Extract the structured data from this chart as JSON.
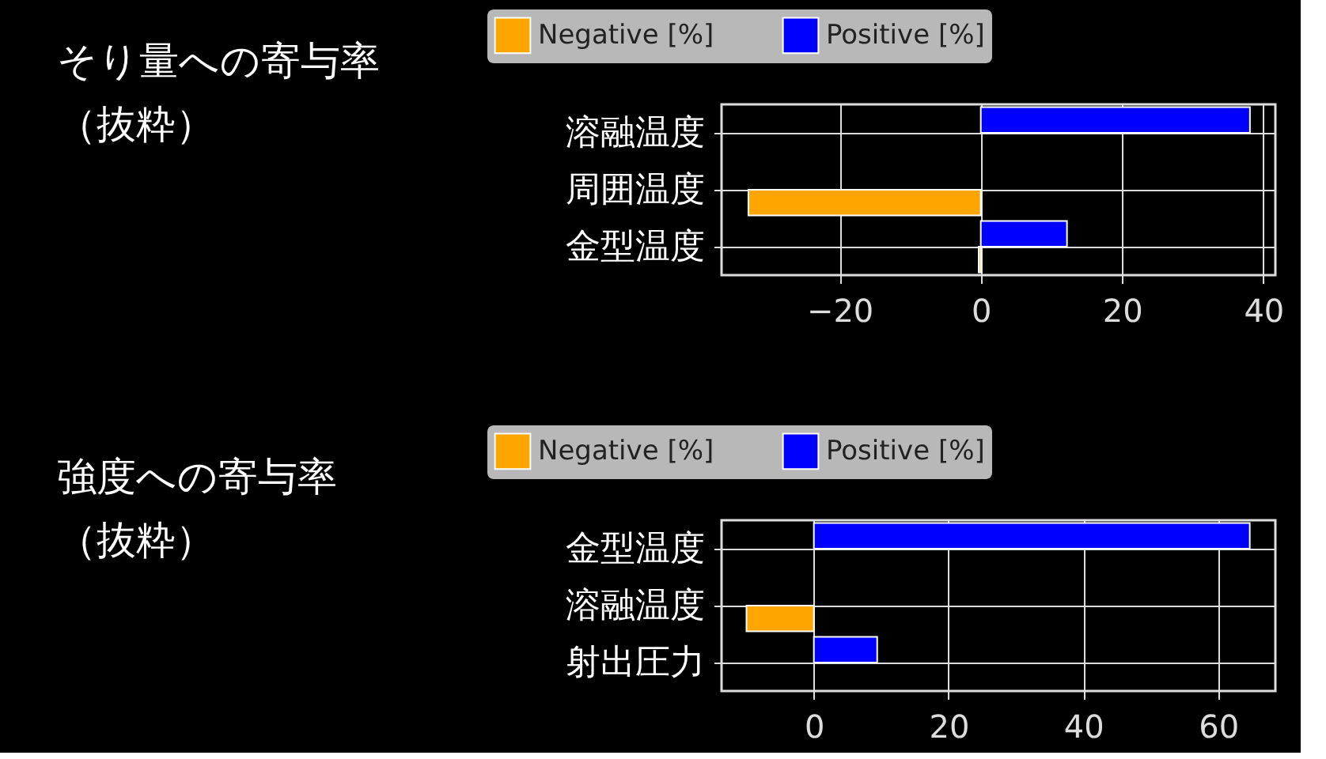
{
  "chart_data": [
    {
      "type": "bar",
      "orientation": "horizontal",
      "title": "そり量への寄与率（抜粋）",
      "categories": [
        "溶融温度",
        "周囲温度",
        "金型温度"
      ],
      "series": [
        {
          "name": "Negative [%]",
          "color": "#ffa500",
          "values": [
            null,
            -32.9,
            -0.3
          ]
        },
        {
          "name": "Positive [%]",
          "color": "#0000ff",
          "values": [
            38.1,
            null,
            12.2
          ]
        }
      ],
      "xlim": [
        -36.7,
        41.7
      ],
      "xticks": [
        {
          "value": -20,
          "label": "−20"
        },
        0,
        20,
        40
      ],
      "grid": true,
      "legend": "top"
    },
    {
      "type": "bar",
      "orientation": "horizontal",
      "title": "強度への寄与率（抜粋）",
      "categories": [
        "金型温度",
        "溶融温度",
        "射出圧力"
      ],
      "series": [
        {
          "name": "Negative [%]",
          "color": "#ffa500",
          "values": [
            null,
            -10.0,
            null
          ]
        },
        {
          "name": "Positive [%]",
          "color": "#0000ff",
          "values": [
            64.7,
            null,
            9.4
          ]
        }
      ],
      "xlim": [
        -13.7,
        68.5
      ],
      "xticks": [
        0,
        20,
        40,
        60
      ],
      "grid": true,
      "legend": "top"
    }
  ]
}
